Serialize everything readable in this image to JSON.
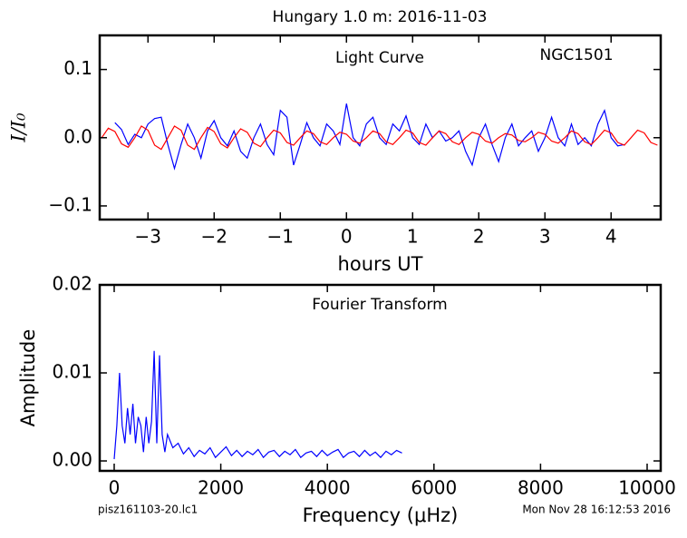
{
  "title": "Hungary 1.0 m:  2016-11-03",
  "footer_left": "pisz161103-20.lc1",
  "footer_right": "Mon Nov 28 16:12:53 2016",
  "chart_data": [
    {
      "type": "line",
      "annotations": [
        "Light Curve",
        "NGC1501"
      ],
      "x_label": "hours UT",
      "y_label": "I/I₀",
      "xlim": [
        -3.73,
        4.75
      ],
      "ylim": [
        -0.12,
        0.15
      ],
      "xticks": [
        {
          "value": -3,
          "label": "−3"
        },
        {
          "value": -2,
          "label": "−2"
        },
        {
          "value": -1,
          "label": "−1"
        },
        0,
        1,
        2,
        3,
        4
      ],
      "yticks": [
        {
          "value": -0.1,
          "label": "−0.1"
        },
        {
          "value": 0,
          "label": "0.0"
        },
        0.1
      ],
      "series": [
        {
          "color": "#0000ff",
          "x": [
            -3.5,
            -3.4,
            -3.3,
            -3.2,
            -3.1,
            -3.0,
            -2.9,
            -2.8,
            -2.7,
            -2.6,
            -2.5,
            -2.4,
            -2.3,
            -2.2,
            -2.1,
            -2.0,
            -1.9,
            -1.8,
            -1.7,
            -1.6,
            -1.5,
            -1.4,
            -1.3,
            -1.2,
            -1.1,
            -1.0,
            -0.9,
            -0.8,
            -0.7,
            -0.6,
            -0.5,
            -0.4,
            -0.3,
            -0.2,
            -0.1,
            0.0,
            0.1,
            0.2,
            0.3,
            0.4,
            0.5,
            0.6,
            0.7,
            0.8,
            0.9,
            1.0,
            1.1,
            1.2,
            1.3,
            1.4,
            1.5,
            1.6,
            1.7,
            1.8,
            1.9,
            2.0,
            2.1,
            2.2,
            2.3,
            2.4,
            2.5,
            2.6,
            2.7,
            2.8,
            2.9,
            3.0,
            3.1,
            3.2,
            3.3,
            3.4,
            3.5,
            3.6,
            3.7,
            3.8,
            3.9,
            4.0,
            4.1,
            4.2
          ],
          "values": [
            0.022,
            0.012,
            -0.01,
            0.005,
            0.0,
            0.02,
            0.028,
            0.03,
            -0.01,
            -0.045,
            -0.01,
            0.02,
            0.0,
            -0.03,
            0.01,
            0.025,
            0.0,
            -0.012,
            0.01,
            -0.02,
            -0.03,
            0.0,
            0.02,
            -0.01,
            -0.025,
            0.04,
            0.03,
            -0.04,
            -0.01,
            0.022,
            0.0,
            -0.012,
            0.02,
            0.01,
            -0.01,
            0.05,
            0.0,
            -0.012,
            0.02,
            0.03,
            0.0,
            -0.01,
            0.02,
            0.01,
            0.032,
            0.0,
            -0.01,
            0.02,
            0.0,
            0.01,
            -0.005,
            0.0,
            0.01,
            -0.02,
            -0.04,
            0.0,
            0.02,
            -0.01,
            -0.035,
            0.0,
            0.02,
            -0.012,
            0.0,
            0.01,
            -0.02,
            0.0,
            0.03,
            0.0,
            -0.012,
            0.02,
            -0.01,
            0.0,
            -0.012,
            0.02,
            0.04,
            0.0,
            -0.012,
            -0.01
          ]
        },
        {
          "color": "#ff0000",
          "x": [
            -3.7,
            -3.6,
            -3.5,
            -3.4,
            -3.3,
            -3.2,
            -3.1,
            -3.0,
            -2.9,
            -2.8,
            -2.7,
            -2.6,
            -2.5,
            -2.4,
            -2.3,
            -2.2,
            -2.1,
            -2.0,
            -1.9,
            -1.8,
            -1.7,
            -1.6,
            -1.5,
            -1.4,
            -1.3,
            -1.2,
            -1.1,
            -1.0,
            -0.9,
            -0.8,
            -0.7,
            -0.6,
            -0.5,
            -0.4,
            -0.3,
            -0.2,
            -0.1,
            0.0,
            0.1,
            0.2,
            0.3,
            0.4,
            0.5,
            0.6,
            0.7,
            0.8,
            0.9,
            1.0,
            1.1,
            1.2,
            1.3,
            1.4,
            1.5,
            1.6,
            1.7,
            1.8,
            1.9,
            2.0,
            2.1,
            2.2,
            2.3,
            2.4,
            2.5,
            2.6,
            2.7,
            2.8,
            2.9,
            3.0,
            3.1,
            3.2,
            3.3,
            3.4,
            3.5,
            3.6,
            3.7,
            3.8,
            3.9,
            4.0,
            4.1,
            4.2,
            4.3,
            4.4,
            4.5,
            4.6,
            4.7
          ],
          "values": [
            0,
            0.014,
            0.009,
            -0.009,
            -0.014,
            0,
            0.017,
            0.011,
            -0.011,
            -0.017,
            0,
            0.017,
            0.011,
            -0.011,
            -0.017,
            0,
            0.015,
            0.009,
            -0.009,
            -0.015,
            0,
            0.013,
            0.008,
            -0.008,
            -0.013,
            0,
            0.011,
            0.007,
            -0.007,
            -0.011,
            0,
            0.01,
            0.006,
            -0.006,
            -0.01,
            0,
            0.008,
            0.005,
            -0.005,
            -0.008,
            0,
            0.01,
            0.006,
            -0.006,
            -0.01,
            0,
            0.011,
            0.007,
            -0.007,
            -0.011,
            0,
            0.01,
            0.006,
            -0.006,
            -0.01,
            0,
            0.008,
            0.005,
            -0.005,
            -0.008,
            0,
            0.006,
            0.004,
            -0.004,
            -0.006,
            0,
            0.008,
            0.005,
            -0.005,
            -0.008,
            0,
            0.01,
            0.006,
            -0.006,
            -0.01,
            0,
            0.011,
            0.007,
            -0.007,
            -0.011,
            0,
            0.011,
            0.007,
            -0.007,
            -0.011
          ]
        }
      ]
    },
    {
      "type": "line",
      "annotations": [
        "Fourier Transform"
      ],
      "x_label": "Frequency (μHz)",
      "y_label": "Amplitude",
      "xlim": [
        -272,
        10255
      ],
      "ylim": [
        -0.00113,
        0.02
      ],
      "xticks": [
        0,
        2000,
        4000,
        6000,
        8000,
        10000
      ],
      "yticks": [
        {
          "value": 0,
          "label": "0.00"
        },
        0.01,
        0.02
      ],
      "series": [
        {
          "color": "#0000ff",
          "x": [
            0,
            50,
            100,
            150,
            200,
            250,
            300,
            350,
            400,
            450,
            500,
            550,
            600,
            650,
            700,
            750,
            800,
            850,
            900,
            950,
            1000,
            1100,
            1200,
            1300,
            1400,
            1500,
            1600,
            1700,
            1800,
            1900,
            2000,
            2100,
            2200,
            2300,
            2400,
            2500,
            2600,
            2700,
            2800,
            2900,
            3000,
            3100,
            3200,
            3300,
            3400,
            3500,
            3600,
            3700,
            3800,
            3900,
            4000,
            4100,
            4200,
            4300,
            4400,
            4500,
            4600,
            4700,
            4800,
            4900,
            5000,
            5100,
            5200,
            5300,
            5400
          ],
          "values": [
            0.0002,
            0.004,
            0.01,
            0.004,
            0.002,
            0.006,
            0.003,
            0.0065,
            0.002,
            0.005,
            0.004,
            0.001,
            0.005,
            0.002,
            0.0045,
            0.0125,
            0.002,
            0.012,
            0.003,
            0.001,
            0.003,
            0.0015,
            0.002,
            0.0008,
            0.0015,
            0.0005,
            0.0012,
            0.0008,
            0.0015,
            0.0004,
            0.001,
            0.0016,
            0.0006,
            0.0012,
            0.0005,
            0.0011,
            0.0007,
            0.0013,
            0.0004,
            0.001,
            0.0012,
            0.0005,
            0.0011,
            0.0007,
            0.0013,
            0.0004,
            0.0009,
            0.0011,
            0.0005,
            0.0012,
            0.0006,
            0.001,
            0.0013,
            0.0004,
            0.0009,
            0.0011,
            0.0005,
            0.0012,
            0.0006,
            0.001,
            0.0004,
            0.0011,
            0.0007,
            0.0012,
            0.0009
          ]
        }
      ]
    }
  ]
}
